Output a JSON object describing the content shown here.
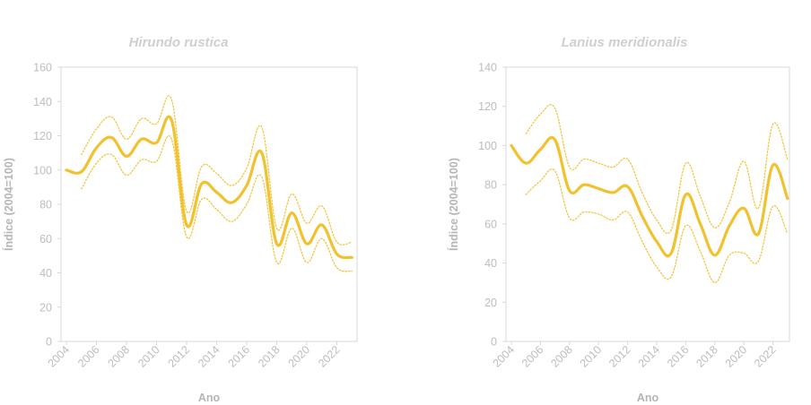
{
  "chart_data": [
    {
      "type": "line",
      "title": "Hirundo rustica",
      "xlabel": "Ano",
      "ylabel": "Índice (2004=100)",
      "ylim": [
        0,
        160
      ],
      "yticks": [
        "0",
        "20",
        "40",
        "60",
        "80",
        "100",
        "120",
        "140",
        "160"
      ],
      "xlim": [
        2004,
        2023
      ],
      "xticks": [
        "2004",
        "2006",
        "2008",
        "2010",
        "2012",
        "2014",
        "2016",
        "2018",
        "2020",
        "2022"
      ],
      "grid": false,
      "color": "#f2c12e",
      "series": [
        {
          "role": "index",
          "x": [
            2004,
            2005,
            2006,
            2007,
            2008,
            2009,
            2010,
            2011,
            2012,
            2013,
            2014,
            2015,
            2016,
            2017,
            2018,
            2019,
            2020,
            2021,
            2022,
            2023
          ],
          "values": [
            100,
            99,
            113,
            119,
            108,
            118,
            116,
            129,
            68,
            92,
            87,
            81,
            91,
            110,
            57,
            75,
            57,
            68,
            51,
            49
          ]
        },
        {
          "role": "upper-bound",
          "x": [
            2005,
            2006,
            2007,
            2008,
            2009,
            2010,
            2011,
            2012,
            2013,
            2014,
            2015,
            2016,
            2017,
            2018,
            2019,
            2020,
            2021,
            2022,
            2023
          ],
          "values": [
            109,
            124,
            131,
            118,
            130,
            127,
            141,
            76,
            102,
            98,
            91,
            101,
            125,
            66,
            86,
            69,
            79,
            58,
            58
          ]
        },
        {
          "role": "lower-bound",
          "x": [
            2005,
            2006,
            2007,
            2008,
            2009,
            2010,
            2011,
            2012,
            2013,
            2014,
            2015,
            2016,
            2017,
            2018,
            2019,
            2020,
            2021,
            2022,
            2023
          ],
          "values": [
            89,
            104,
            109,
            97,
            106,
            105,
            118,
            61,
            83,
            77,
            70,
            80,
            96,
            46,
            66,
            46,
            60,
            43,
            41
          ]
        }
      ]
    },
    {
      "type": "line",
      "title": "Lanius meridionalis",
      "xlabel": "Ano",
      "ylabel": "Índice (2004=100)",
      "ylim": [
        0,
        140
      ],
      "yticks": [
        "0",
        "20",
        "40",
        "60",
        "80",
        "100",
        "120",
        "140"
      ],
      "xlim": [
        2004,
        2023
      ],
      "xticks": [
        "2004",
        "2006",
        "2008",
        "2010",
        "2012",
        "2014",
        "2016",
        "2018",
        "2020",
        "2022"
      ],
      "grid": false,
      "color": "#f2c12e",
      "series": [
        {
          "role": "index",
          "x": [
            2004,
            2005,
            2006,
            2007,
            2008,
            2009,
            2010,
            2011,
            2012,
            2013,
            2014,
            2015,
            2016,
            2017,
            2018,
            2019,
            2020,
            2021,
            2022,
            2023
          ],
          "values": [
            100,
            91,
            98,
            103,
            77,
            80,
            78,
            76,
            79,
            64,
            51,
            45,
            75,
            60,
            44,
            59,
            68,
            55,
            90,
            73
          ]
        },
        {
          "role": "upper-bound",
          "x": [
            2005,
            2006,
            2007,
            2008,
            2009,
            2010,
            2011,
            2012,
            2013,
            2014,
            2015,
            2016,
            2017,
            2018,
            2019,
            2020,
            2021,
            2022,
            2023
          ],
          "values": [
            106,
            116,
            119,
            89,
            93,
            91,
            89,
            93,
            76,
            62,
            57,
            91,
            74,
            58,
            71,
            92,
            68,
            111,
            93
          ]
        },
        {
          "role": "lower-bound",
          "x": [
            2005,
            2006,
            2007,
            2008,
            2009,
            2010,
            2011,
            2012,
            2013,
            2014,
            2015,
            2016,
            2017,
            2018,
            2019,
            2020,
            2021,
            2022,
            2023
          ],
          "values": [
            75,
            82,
            87,
            63,
            66,
            65,
            62,
            66,
            51,
            38,
            33,
            59,
            46,
            30,
            44,
            45,
            41,
            69,
            55
          ]
        }
      ]
    }
  ]
}
